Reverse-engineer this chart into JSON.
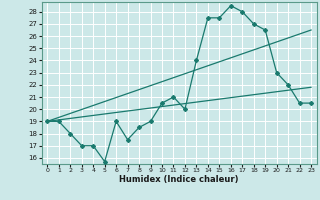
{
  "xlabel": "Humidex (Indice chaleur)",
  "bg_color": "#cce8e8",
  "grid_color": "#ffffff",
  "line_color": "#1a7a6e",
  "xlim": [
    -0.5,
    23.5
  ],
  "ylim": [
    15.5,
    28.8
  ],
  "xticks": [
    0,
    1,
    2,
    3,
    4,
    5,
    6,
    7,
    8,
    9,
    10,
    11,
    12,
    13,
    14,
    15,
    16,
    17,
    18,
    19,
    20,
    21,
    22,
    23
  ],
  "yticks": [
    16,
    17,
    18,
    19,
    20,
    21,
    22,
    23,
    24,
    25,
    26,
    27,
    28
  ],
  "line1_x": [
    0,
    1,
    2,
    3,
    4,
    5,
    6,
    7,
    8,
    9,
    10,
    11,
    12,
    13,
    14,
    15,
    16,
    17,
    18,
    19,
    20,
    21,
    22,
    23
  ],
  "line1_y": [
    19.0,
    19.0,
    18.0,
    17.0,
    17.0,
    15.7,
    19.0,
    17.5,
    18.5,
    19.0,
    20.5,
    21.0,
    20.0,
    24.0,
    27.5,
    27.5,
    28.5,
    28.0,
    27.0,
    26.5,
    23.0,
    22.0,
    20.5,
    20.5
  ],
  "line2_x": [
    0,
    23
  ],
  "line2_y": [
    19.0,
    21.8
  ],
  "line3_x": [
    0,
    23
  ],
  "line3_y": [
    19.0,
    26.5
  ]
}
